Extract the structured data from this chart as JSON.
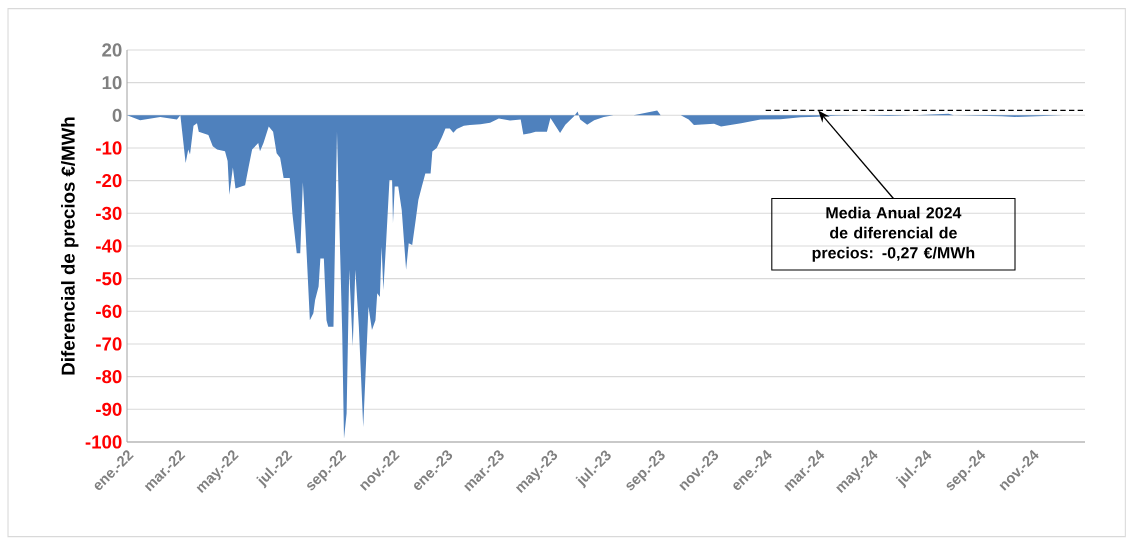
{
  "chart_data": {
    "type": "area",
    "ylabel": "Diferencial de precios €/MWh",
    "x": [
      "2022-01-01",
      "2022-01-16",
      "2022-02-08",
      "2022-02-27",
      "2022-03-03",
      "2022-03-05",
      "2022-03-09",
      "2022-03-12",
      "2022-03-14",
      "2022-03-18",
      "2022-03-22",
      "2022-03-24",
      "2022-04-04",
      "2022-04-09",
      "2022-04-14",
      "2022-04-23",
      "2022-04-26",
      "2022-04-28",
      "2022-05-02",
      "2022-05-05",
      "2022-05-16",
      "2022-05-20",
      "2022-05-24",
      "2022-05-31",
      "2022-06-02",
      "2022-06-06",
      "2022-06-12",
      "2022-06-17",
      "2022-06-21",
      "2022-06-25",
      "2022-06-29",
      "2022-07-06",
      "2022-07-09",
      "2022-07-14",
      "2022-07-18",
      "2022-07-21",
      "2022-07-24",
      "2022-07-29",
      "2022-08-02",
      "2022-08-04",
      "2022-08-08",
      "2022-08-10",
      "2022-08-14",
      "2022-08-17",
      "2022-08-19",
      "2022-08-25",
      "2022-08-29",
      "2022-09-04",
      "2022-09-06",
      "2022-09-09",
      "2022-09-12",
      "2022-09-16",
      "2022-09-19",
      "2022-09-23",
      "2022-09-28",
      "2022-10-04",
      "2022-10-08",
      "2022-10-12",
      "2022-10-14",
      "2022-10-17",
      "2022-10-19",
      "2022-10-21",
      "2022-10-24",
      "2022-10-28",
      "2022-10-31",
      "2022-11-01",
      "2022-11-03",
      "2022-11-07",
      "2022-11-11",
      "2022-11-16",
      "2022-11-19",
      "2022-11-23",
      "2022-11-27",
      "2022-11-30",
      "2022-12-04",
      "2022-12-08",
      "2022-12-14",
      "2022-12-16",
      "2022-12-21",
      "2022-12-27",
      "2022-12-31",
      "2023-01-05",
      "2023-01-09",
      "2023-01-13",
      "2023-01-21",
      "2023-01-28",
      "2023-02-09",
      "2023-02-20",
      "2023-03-02",
      "2023-03-15",
      "2023-03-27",
      "2023-03-30",
      "2023-04-07",
      "2023-04-13",
      "2023-04-26",
      "2023-04-30",
      "2023-05-11",
      "2023-05-17",
      "2023-05-27",
      "2023-05-31",
      "2023-06-03",
      "2023-06-11",
      "2023-06-19",
      "2023-06-30",
      "2023-07-11",
      "2023-08-03",
      "2023-08-30",
      "2023-09-03",
      "2023-09-26",
      "2023-10-05",
      "2023-10-11",
      "2023-11-03",
      "2023-11-11",
      "2023-12-04",
      "2023-12-26",
      "2024-01-18",
      "2024-02-10",
      "2024-02-29",
      "2024-03-21",
      "2024-04-20",
      "2024-05-20",
      "2024-06-19",
      "2024-07-28",
      "2024-08-03",
      "2024-09-27",
      "2024-10-12",
      "2024-11-06",
      "2024-12-06",
      "2024-12-31"
    ],
    "series": [
      {
        "color": "#4f81bd",
        "values": [
          0,
          -1.5,
          -0.5,
          -1.3,
          0,
          -4.9,
          -14.6,
          -10.5,
          -12,
          -3.2,
          -2.4,
          -5,
          -6,
          -9.5,
          -10.5,
          -11,
          -14,
          -24.3,
          -16,
          -22.4,
          -21.4,
          -15.8,
          -10.5,
          -8.5,
          -11,
          -8.5,
          -3.4,
          -5,
          -11.6,
          -13,
          -19.2,
          -19.2,
          -30,
          -42.2,
          -42.2,
          -20.5,
          -35,
          -62.7,
          -60.6,
          -56.5,
          -52.4,
          -43.8,
          -43.8,
          -62.7,
          -64.7,
          -64.7,
          -5,
          -66.8,
          -99,
          -91.3,
          -47.3,
          -70.6,
          -47.3,
          -64.7,
          -95.4,
          -58.6,
          -65.7,
          -62.7,
          -54.5,
          -55.6,
          -40.2,
          -53.5,
          -39.7,
          -19.8,
          -19.8,
          -33,
          -21.8,
          -21.8,
          -29,
          -47.3,
          -39.2,
          -39.7,
          -32,
          -25.9,
          -21.8,
          -17.8,
          -17.8,
          -11.1,
          -10,
          -6.6,
          -4,
          -4,
          -5.3,
          -4.2,
          -3.2,
          -3,
          -2.7,
          -2.3,
          -1,
          -1.6,
          -1.3,
          -5.9,
          -5.5,
          -5,
          -5,
          -0.8,
          -5.4,
          -2.9,
          -0.3,
          1.2,
          -1.3,
          -2.9,
          -1.5,
          -0.5,
          0,
          0,
          1.5,
          0,
          0,
          -1.3,
          -3,
          -2.6,
          -3.4,
          -2.4,
          -1.3,
          -1.2,
          -0.6,
          -0.4,
          -0.1,
          0,
          -0.2,
          0,
          0.5,
          0,
          -0.3,
          -0.5,
          -0.3,
          0,
          0
        ]
      },
      {
        "type": "line",
        "color": "#000000",
        "line_style": "dashed",
        "x": [
          "2024-01-01",
          "2024-12-31"
        ],
        "values": [
          1.5,
          1.5
        ]
      }
    ],
    "xlim": [
      "2022-01-01",
      "2024-12-31"
    ],
    "xticks": [
      {
        "value": "2022-01-01",
        "label": "ene.-22"
      },
      {
        "value": "2022-03-01",
        "label": "mar.-22"
      },
      {
        "value": "2022-05-01",
        "label": "may.-22"
      },
      {
        "value": "2022-07-01",
        "label": "jul.-22"
      },
      {
        "value": "2022-09-01",
        "label": "sep.-22"
      },
      {
        "value": "2022-11-01",
        "label": "nov.-22"
      },
      {
        "value": "2023-01-01",
        "label": "ene.-23"
      },
      {
        "value": "2023-03-01",
        "label": "mar.-23"
      },
      {
        "value": "2023-05-01",
        "label": "may.-23"
      },
      {
        "value": "2023-07-01",
        "label": "jul.-23"
      },
      {
        "value": "2023-09-01",
        "label": "sep.-23"
      },
      {
        "value": "2023-11-01",
        "label": "nov.-23"
      },
      {
        "value": "2024-01-01",
        "label": "ene.-24"
      },
      {
        "value": "2024-03-01",
        "label": "mar.-24"
      },
      {
        "value": "2024-05-01",
        "label": "may.-24"
      },
      {
        "value": "2024-07-01",
        "label": "jul.-24"
      },
      {
        "value": "2024-09-01",
        "label": "sep.-24"
      },
      {
        "value": "2024-11-01",
        "label": "nov.-24"
      }
    ],
    "ylim": [
      -100,
      20
    ],
    "yticks": [
      -100,
      -90,
      -80,
      -70,
      -60,
      -50,
      -40,
      -30,
      -20,
      -10,
      0,
      10,
      20
    ],
    "grid": "y",
    "annotations": [
      {
        "text": "Media Anual 2024 de diferencial de precios: -0,27 €/MWh",
        "x": "2024-03-01",
        "y": 1.5
      }
    ]
  }
}
